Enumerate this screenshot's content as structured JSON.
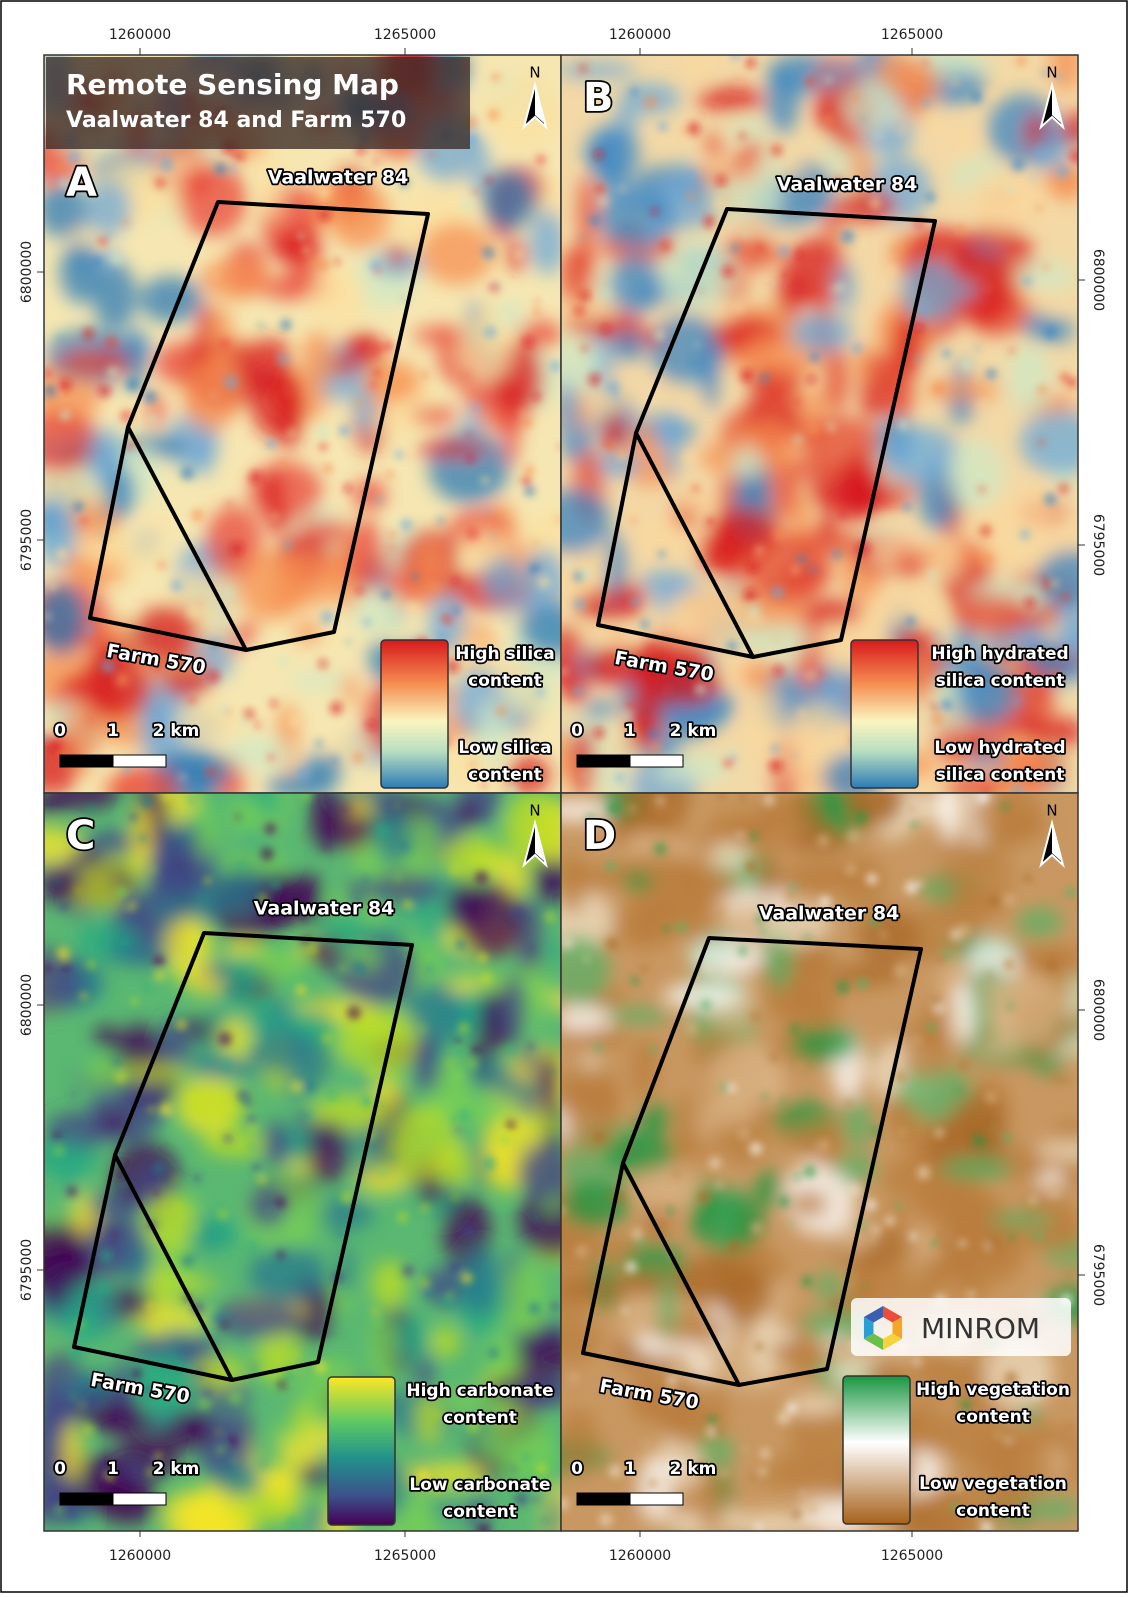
{
  "header": {
    "title": "Remote Sensing Map",
    "subtitle": "Vaalwater 84 and Farm 570"
  },
  "grid_labels": {
    "top": [
      "1260000",
      "1265000",
      "1260000",
      "1265000"
    ],
    "bottom": [
      "1260000",
      "1265000",
      "1260000",
      "1265000"
    ],
    "left": [
      "6800000",
      "6795000",
      "6800000",
      "6795000"
    ],
    "right": [
      "6800000",
      "6795000",
      "6800000",
      "6795000"
    ]
  },
  "panels": [
    {
      "letter": "A",
      "north": "N",
      "label_top": "Vaalwater 84",
      "label_bottom": "Farm 570",
      "legend_high": [
        "High silica",
        "content"
      ],
      "legend_low": [
        "Low silica",
        "content"
      ],
      "scale": [
        "0",
        "1",
        "2 km"
      ]
    },
    {
      "letter": "B",
      "north": "N",
      "label_top": "Vaalwater 84",
      "label_bottom": "Farm 570",
      "legend_high": [
        "High hydrated",
        "silica content"
      ],
      "legend_low": [
        "Low hydrated",
        "silica content"
      ],
      "scale": [
        "0",
        "1",
        "2 km"
      ]
    },
    {
      "letter": "C",
      "north": "N",
      "label_top": "Vaalwater 84",
      "label_bottom": "Farm 570",
      "legend_high": [
        "High carbonate",
        "content"
      ],
      "legend_low": [
        "Low carbonate",
        "content"
      ],
      "scale": [
        "0",
        "1",
        "2 km"
      ]
    },
    {
      "letter": "D",
      "north": "N",
      "label_top": "Vaalwater 84",
      "label_bottom": "Farm 570",
      "legend_high": [
        "High vegetation",
        "content"
      ],
      "legend_low": [
        "Low vegetation",
        "content"
      ],
      "scale": [
        "0",
        "1",
        "2 km"
      ],
      "logo": "MINROM"
    }
  ]
}
